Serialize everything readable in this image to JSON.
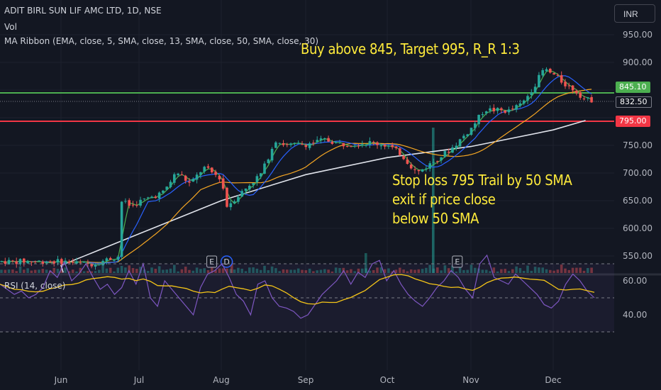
{
  "header": {
    "symbol": "ADIT BIRL SUN LIF AMC LTD, 1D, NSE",
    "volume_label": "Vol",
    "ma_label": "MA Ribbon (EMA, close, 5, SMA, close, 13, SMA, close, 50, SMA, close, 30)"
  },
  "currency_button": "INR",
  "annotations": {
    "trade": "Buy above 845, Target 995, R_R 1:3",
    "stop_line1": "Stop loss 795 Trail by 50 SMA",
    "stop_line2": "exit if price close",
    "stop_line3": "below 50 SMA"
  },
  "price_tags": {
    "green": "845.10",
    "last": "832.50",
    "red": "795.00"
  },
  "colors": {
    "background": "#131722",
    "up": "#26a69a",
    "down": "#ef5350",
    "green_line": "#4caf50",
    "red_line": "#f23645",
    "annotation": "#ffeb3b",
    "rsi": "#7e57c2"
  },
  "chart_data": [
    {
      "type": "candlestick",
      "panel": "price",
      "yticks": [
        550,
        600,
        650,
        700,
        750,
        800,
        850,
        900,
        950
      ],
      "ytick_labels": [
        "550.00",
        "600.00",
        "650.00",
        "700.00",
        "750.00",
        "800.00",
        "850.00",
        "900.00",
        "950.00"
      ],
      "xtick_labels": [
        "Jun",
        "Jul",
        "Aug",
        "Sep",
        "Oct",
        "Nov",
        "Dec"
      ],
      "horizontal_lines": [
        {
          "value": 845.1,
          "color": "green"
        },
        {
          "value": 795.0,
          "color": "red"
        }
      ],
      "event_markers": [
        {
          "label": "E",
          "date": "Jul-28"
        },
        {
          "label": "D",
          "date": "Aug-03"
        },
        {
          "label": "E",
          "date": "Oct-27"
        }
      ],
      "close_path": [
        [
          "May-10",
          540
        ],
        [
          "May-20",
          535
        ],
        [
          "May-31",
          550
        ],
        [
          "Jun-05",
          585
        ],
        [
          "Jun-10",
          645
        ],
        [
          "Jun-13",
          680
        ],
        [
          "Jun-20",
          658
        ],
        [
          "Jun-27",
          640
        ],
        [
          "Jul-01",
          648
        ],
        [
          "Jul-10",
          665
        ],
        [
          "Jul-15",
          702
        ],
        [
          "Jul-20",
          680
        ],
        [
          "Jul-25",
          710
        ],
        [
          "Aug-01",
          690
        ],
        [
          "Aug-03",
          640
        ],
        [
          "Aug-10",
          672
        ],
        [
          "Aug-16",
          700
        ],
        [
          "Aug-21",
          760
        ],
        [
          "Aug-25",
          750
        ],
        [
          "Sep-01",
          752
        ],
        [
          "Sep-08",
          760
        ],
        [
          "Sep-15",
          752
        ],
        [
          "Sep-25",
          755
        ],
        [
          "Oct-01",
          750
        ],
        [
          "Oct-06",
          735
        ],
        [
          "Oct-12",
          700
        ],
        [
          "Oct-18",
          720
        ],
        [
          "Oct-25",
          745
        ],
        [
          "Nov-01",
          780
        ],
        [
          "Nov-06",
          815
        ],
        [
          "Nov-15",
          812
        ],
        [
          "Nov-20",
          825
        ],
        [
          "Nov-25",
          862
        ],
        [
          "Nov-28",
          888
        ],
        [
          "Dec-01",
          878
        ],
        [
          "Dec-05",
          862
        ],
        [
          "Dec-09",
          850
        ],
        [
          "Dec-13",
          832.5
        ]
      ],
      "ma_ribbon_sma50": [
        [
          "May-10",
          520
        ],
        [
          "Jun-01",
          533
        ],
        [
          "Jul-01",
          590
        ],
        [
          "Aug-01",
          650
        ],
        [
          "Sep-01",
          697
        ],
        [
          "Oct-01",
          728
        ],
        [
          "Nov-01",
          748
        ],
        [
          "Dec-01",
          778
        ],
        [
          "Dec-13",
          795
        ]
      ]
    },
    {
      "type": "line",
      "panel": "rsi",
      "title": "RSI (14, close)",
      "yticks": [
        40,
        60
      ],
      "ytick_labels": [
        "40.00",
        "60.00"
      ],
      "bands": [
        30,
        50,
        70
      ],
      "series": [
        {
          "values": [
            58,
            55,
            52,
            54,
            50,
            52,
            56,
            66,
            62,
            71,
            60,
            64,
            70,
            62,
            55,
            58,
            52,
            56,
            66,
            58,
            70,
            50,
            45,
            60,
            55,
            50,
            45,
            40,
            56,
            64,
            66,
            70,
            62,
            52,
            48,
            40,
            58,
            60,
            50,
            45,
            44,
            42,
            38,
            40,
            46,
            52,
            56,
            60,
            66,
            58,
            65,
            62,
            70,
            72,
            60,
            66,
            58,
            52,
            48,
            45,
            50,
            56,
            60,
            66,
            62,
            55,
            50,
            70,
            75,
            62,
            60,
            58,
            64,
            60,
            56,
            52,
            46,
            44,
            48,
            58,
            64,
            60,
            54,
            50
          ]
        }
      ]
    }
  ]
}
